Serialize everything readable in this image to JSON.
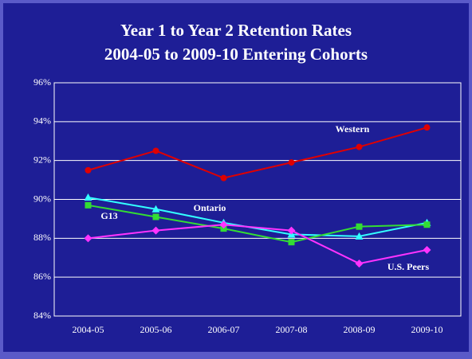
{
  "chart_data": {
    "type": "line",
    "title": "Year 1 to Year 2 Retention Rates",
    "subtitle": "2004-05 to 2009-10 Entering Cohorts",
    "categories": [
      "2004-05",
      "2005-06",
      "2006-07",
      "2007-08",
      "2008-09",
      "2009-10"
    ],
    "series": [
      {
        "name": "Western",
        "color": "#e00000",
        "marker": "circle",
        "values": [
          91.5,
          92.5,
          91.1,
          91.9,
          92.7,
          93.7
        ]
      },
      {
        "name": "Ontario",
        "color": "#33ffff",
        "marker": "triangle",
        "values": [
          90.1,
          89.5,
          88.8,
          88.2,
          88.1,
          88.8
        ]
      },
      {
        "name": "G13",
        "color": "#33dd33",
        "marker": "square",
        "values": [
          89.7,
          89.1,
          88.5,
          87.8,
          88.6,
          88.7
        ]
      },
      {
        "name": "U.S. Peers",
        "color": "#ff33ff",
        "marker": "diamond",
        "values": [
          88.0,
          88.4,
          88.7,
          88.4,
          86.7,
          87.4
        ]
      }
    ],
    "ylim": [
      84,
      96
    ],
    "yticks": [
      {
        "value": 84,
        "label": "84%"
      },
      {
        "value": 86,
        "label": "86%"
      },
      {
        "value": 88,
        "label": "88%"
      },
      {
        "value": 90,
        "label": "90%"
      },
      {
        "value": 92,
        "label": "92%"
      },
      {
        "value": 94,
        "label": "94%"
      },
      {
        "value": 96,
        "label": "96%"
      }
    ],
    "grid": true
  }
}
